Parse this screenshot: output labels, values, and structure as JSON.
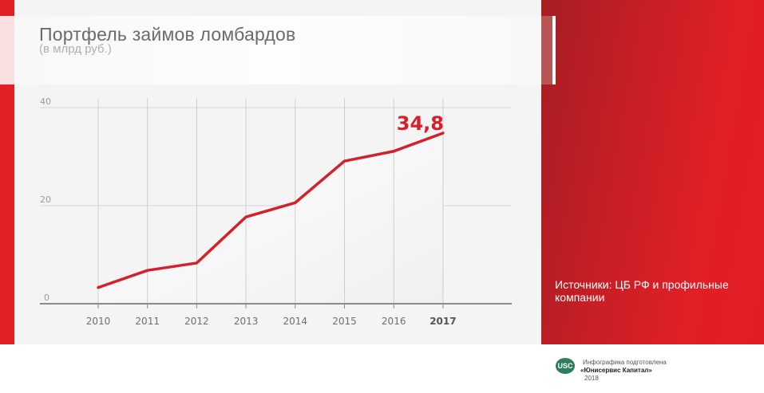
{
  "header": {
    "title": "Портфель займов ломбардов",
    "subtitle": "(в млрд руб.)"
  },
  "sources": "Источники: ЦБ РФ и профильные компании",
  "footer": {
    "logo_text": "USC",
    "line1": "Инфографика подготовлена",
    "line2": "«Юнисервис Капитал»",
    "line3": "2018"
  },
  "colors": {
    "accent": "#d4202a",
    "panel_red": "#e01f26",
    "panel_dark_red": "#a61e22",
    "background": "#f4f4f4"
  },
  "chart_data": {
    "type": "area",
    "title": "Портфель займов ломбардов",
    "subtitle": "(в млрд руб.)",
    "xlabel": "",
    "ylabel": "млрд руб.",
    "categories": [
      "2010",
      "2011",
      "2012",
      "2013",
      "2014",
      "2015",
      "2016",
      "2017"
    ],
    "values": [
      3.3,
      6.8,
      8.3,
      17.7,
      20.6,
      29.1,
      31.1,
      34.8
    ],
    "y_ticks": [
      "0",
      "20",
      "40"
    ],
    "ylim": [
      0,
      40
    ],
    "grid": true,
    "highlight": {
      "category": "2017",
      "label": "34,8"
    },
    "legend": null
  }
}
